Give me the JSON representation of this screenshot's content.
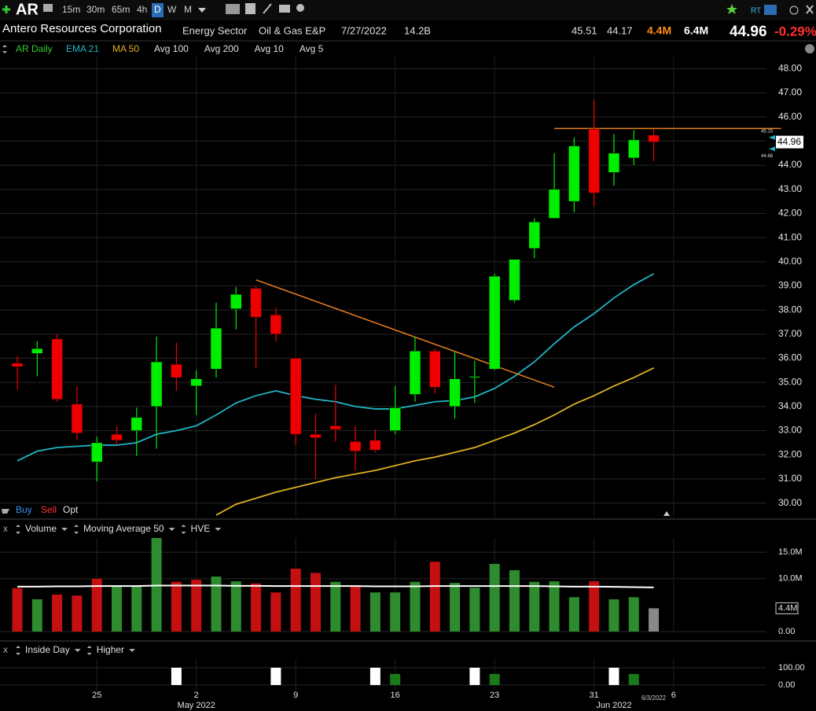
{
  "toolbar": {
    "symbol": "AR",
    "intervals": [
      "15m",
      "30m",
      "65m",
      "4h",
      "D",
      "W",
      "M"
    ],
    "rt": "RT"
  },
  "header": {
    "company": "Antero Resources Corporation",
    "sector": "Energy Sector",
    "industry": "Oil & Gas E&P",
    "date": "7/27/2022",
    "market_cap": "14.2B",
    "high": "45.51",
    "low": "44.17",
    "volume": "4.4M",
    "avg_volume": "6.4M",
    "last": "44.96",
    "change": "-0.29%"
  },
  "legend_extra": [
    {
      "name": "Avg 100",
      "color": "#e8801e"
    },
    {
      "name": "Avg 200",
      "color": "#cccccc"
    },
    {
      "name": "Avg 10",
      "color": "#d8a8e0"
    },
    {
      "name": "Avg 5",
      "color": "#1f9090"
    }
  ],
  "trade": [
    "Buy",
    "Sell",
    "Opt"
  ],
  "chart_data": [
    {
      "type": "candlestick",
      "name": "AR Daily",
      "name_color": "#33cc33",
      "up_color": "#00ee00",
      "down_color": "#ee0000",
      "open": [
        35.8,
        36.2,
        36.8,
        34.1,
        31.7,
        32.85,
        33.0,
        34.0,
        35.75,
        34.85,
        35.55,
        38.05,
        38.9,
        37.8,
        36.0,
        32.85,
        33.2,
        32.55,
        32.6,
        33.0,
        34.5,
        36.3,
        34.0,
        35.2,
        35.55,
        38.4,
        40.55,
        41.8,
        42.5,
        45.5,
        43.7,
        44.3,
        45.25
      ],
      "high": [
        36.1,
        36.7,
        37.0,
        34.85,
        32.75,
        33.2,
        33.95,
        36.9,
        36.65,
        35.5,
        38.3,
        38.95,
        39.0,
        38.1,
        36.0,
        33.7,
        34.9,
        33.2,
        33.05,
        34.85,
        36.9,
        36.4,
        36.25,
        35.9,
        39.5,
        40.1,
        41.8,
        44.5,
        45.15,
        46.7,
        45.3,
        45.45,
        45.51
      ],
      "low": [
        34.7,
        35.25,
        34.2,
        32.6,
        30.9,
        32.4,
        31.95,
        32.25,
        34.65,
        33.65,
        35.2,
        37.2,
        35.6,
        36.7,
        32.4,
        31.0,
        32.55,
        31.35,
        32.1,
        32.85,
        34.2,
        34.55,
        33.5,
        34.15,
        35.5,
        38.3,
        40.15,
        41.8,
        42.05,
        42.3,
        43.15,
        44.0,
        44.17
      ],
      "close": [
        35.65,
        36.4,
        34.3,
        32.9,
        32.5,
        32.6,
        33.55,
        35.85,
        35.2,
        35.15,
        37.25,
        38.65,
        37.7,
        37.0,
        32.85,
        32.7,
        33.05,
        32.15,
        32.2,
        33.95,
        36.3,
        34.8,
        35.15,
        35.25,
        39.4,
        40.1,
        41.65,
        43.0,
        44.8,
        42.85,
        44.5,
        45.05,
        44.96
      ],
      "series": [
        {
          "name": "EMA 21",
          "color": "#1fb5c8",
          "values": [
            31.75,
            32.15,
            32.3,
            32.35,
            32.4,
            32.4,
            32.5,
            32.85,
            33.0,
            33.2,
            33.65,
            34.15,
            34.45,
            34.65,
            34.45,
            34.3,
            34.2,
            34.0,
            33.9,
            33.9,
            34.05,
            34.2,
            34.25,
            34.4,
            34.75,
            35.25,
            35.85,
            36.6,
            37.3,
            37.85,
            38.5,
            39.05,
            39.5
          ]
        },
        {
          "name": "MA 50",
          "color": "#e0b020",
          "values": [
            null,
            null,
            null,
            null,
            null,
            null,
            null,
            null,
            null,
            null,
            29.5,
            29.95,
            30.2,
            30.45,
            30.65,
            30.85,
            31.05,
            31.2,
            31.35,
            31.55,
            31.75,
            31.9,
            32.1,
            32.3,
            32.6,
            32.9,
            33.25,
            33.65,
            34.1,
            34.45,
            34.85,
            35.2,
            35.6
          ]
        }
      ],
      "trendlines": [
        {
          "color": "#e8801e",
          "x": [
            12,
            27
          ],
          "y": [
            39.25,
            34.8
          ]
        },
        {
          "color": "#e8801e",
          "x": [
            27,
            38.4
          ],
          "y": [
            45.52,
            45.52
          ]
        }
      ],
      "axis_markers": [
        {
          "value": 45.15,
          "label": "45.15",
          "color": "#1fb5c8"
        },
        {
          "value": 44.68,
          "label": "44.68",
          "color": "#1fb5c8"
        }
      ],
      "xlim": [
        -0.87,
        37.67
      ],
      "xticks": [
        {
          "value": 4,
          "label": "25"
        },
        {
          "value": 9,
          "label": "2"
        },
        {
          "value": 14,
          "label": "9"
        },
        {
          "value": 19,
          "label": "16"
        },
        {
          "value": 24,
          "label": "23"
        },
        {
          "value": 29,
          "label": "31"
        },
        {
          "value": 33,
          "label": "6"
        }
      ],
      "month_labels": [
        {
          "value": 9,
          "label": "May 2022"
        },
        {
          "value": 30,
          "label": "Jun 2022"
        }
      ],
      "cursor": {
        "value": 32,
        "label": "6/3/2022"
      },
      "ylim": [
        29.4,
        48.5
      ],
      "yticks": [
        {
          "value": 30,
          "label": "30.00"
        },
        {
          "value": 31,
          "label": "31.00"
        },
        {
          "value": 32,
          "label": "32.00"
        },
        {
          "value": 33,
          "label": "33.00"
        },
        {
          "value": 34,
          "label": "34.00"
        },
        {
          "value": 35,
          "label": "35.00"
        },
        {
          "value": 36,
          "label": "36.00"
        },
        {
          "value": 37,
          "label": "37.00"
        },
        {
          "value": 38,
          "label": "38.00"
        },
        {
          "value": 39,
          "label": "39.00"
        },
        {
          "value": 40,
          "label": "40.00"
        },
        {
          "value": 41,
          "label": "41.00"
        },
        {
          "value": 42,
          "label": "42.00"
        },
        {
          "value": 43,
          "label": "43.00"
        },
        {
          "value": 44,
          "label": "44.00"
        },
        {
          "value": 45,
          "label": "45.00"
        },
        {
          "value": 46,
          "label": "46.00"
        },
        {
          "value": 47,
          "label": "47.00"
        },
        {
          "value": 48,
          "label": "48.00"
        }
      ]
    },
    {
      "type": "bar",
      "extra": "HVE",
      "series": [
        {
          "name": "Volume",
          "color": "#2e8b2e",
          "down_color": "#c41010",
          "current_color": "#888888",
          "name_color": "#33cc33",
          "values": [
            8.2,
            6.1,
            7.0,
            6.8,
            10.0,
            8.6,
            8.6,
            17.7,
            9.4,
            9.8,
            10.4,
            9.5,
            9.1,
            7.4,
            11.9,
            11.1,
            9.4,
            8.5,
            7.4,
            7.4,
            9.4,
            13.2,
            9.2,
            8.3,
            12.8,
            11.6,
            9.4,
            9.5,
            6.5,
            9.5,
            6.1,
            6.5,
            4.4
          ]
        },
        {
          "name": "Moving Average 50",
          "type": "line",
          "color": "#ffffff",
          "name_color": "#ffffff",
          "values": [
            8.5,
            8.5,
            8.55,
            8.55,
            8.6,
            8.6,
            8.6,
            8.7,
            8.7,
            8.7,
            8.7,
            8.65,
            8.65,
            8.6,
            8.6,
            8.6,
            8.6,
            8.6,
            8.55,
            8.55,
            8.55,
            8.6,
            8.6,
            8.6,
            8.6,
            8.6,
            8.6,
            8.55,
            8.5,
            8.5,
            8.45,
            8.4,
            8.35
          ]
        }
      ],
      "ylim": [
        -0.3,
        17.7
      ],
      "yticks": [
        {
          "value": 0,
          "label": "0.00"
        },
        {
          "value": 10,
          "label": "10.0M"
        },
        {
          "value": 15,
          "label": "15.0M"
        }
      ]
    },
    {
      "type": "bar",
      "series": [
        {
          "name": "Inside Day",
          "color": "#ffffff",
          "name_color": "#ffffff",
          "values": [
            0,
            0,
            0,
            0,
            0,
            0,
            0,
            0,
            100,
            0,
            0,
            0,
            0,
            100,
            0,
            0,
            0,
            0,
            100,
            0,
            0,
            0,
            0,
            100,
            0,
            0,
            0,
            0,
            0,
            0,
            100,
            0,
            0
          ]
        },
        {
          "name": "Higher",
          "color": "#1a7a1a",
          "name_color": "#33cc33",
          "values": [
            0,
            0,
            0,
            0,
            0,
            0,
            0,
            0,
            0,
            0,
            0,
            0,
            0,
            0,
            0,
            0,
            0,
            0,
            0,
            64,
            0,
            0,
            0,
            0,
            64,
            0,
            0,
            0,
            0,
            0,
            0,
            64,
            0
          ]
        }
      ],
      "ylim": [
        -32,
        150
      ],
      "yticks": [
        {
          "value": 0,
          "label": "0.00"
        },
        {
          "value": 100,
          "label": "100.00"
        }
      ]
    }
  ]
}
